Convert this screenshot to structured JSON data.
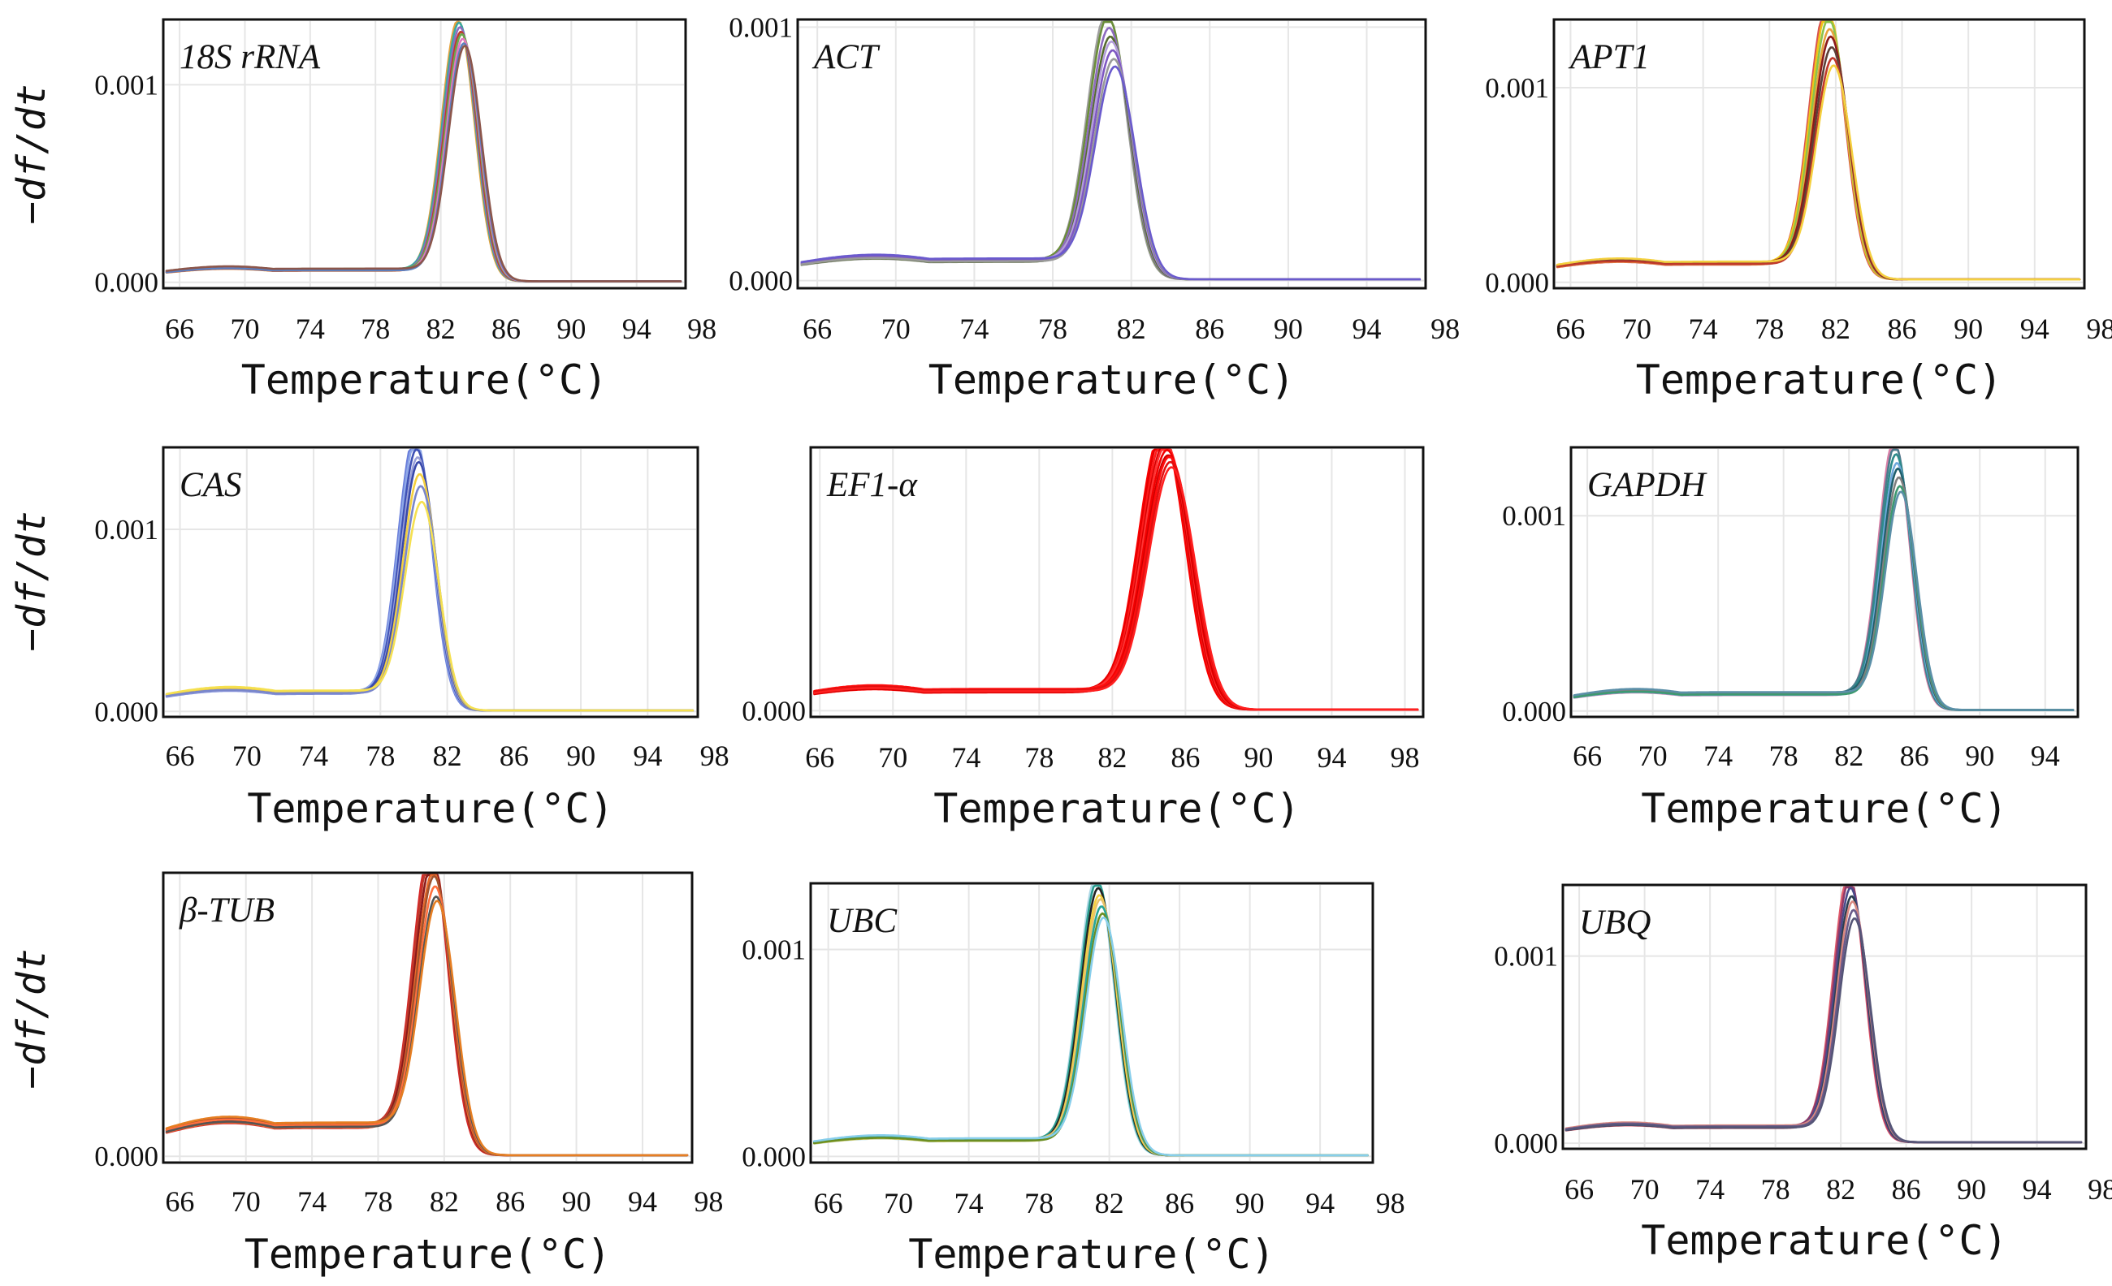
{
  "figure": {
    "ylabel": "−df/dt",
    "xlabel": "Temperature(°C)"
  },
  "chart_data": [
    {
      "type": "line",
      "gene": "18S rRNA",
      "xlabel": "Temperature(°C)",
      "ylabel": "−df/dt",
      "xlim": [
        65,
        97
      ],
      "ylim": [
        -3e-05,
        0.00133
      ],
      "xticks": [
        66,
        70,
        74,
        78,
        82,
        86,
        90,
        94,
        98
      ],
      "yticks": [
        {
          "value": 0,
          "label": "0.000"
        },
        {
          "value": 0.001,
          "label": "0.001"
        }
      ],
      "peak_temperature": 83.3,
      "peak_width": 1.0,
      "shoulder": 7e-05,
      "tail": 5e-06,
      "series_peaks": [
        0.00127,
        0.00125,
        0.00123,
        0.00121,
        0.00119,
        0.00117,
        0.00115,
        0.00113
      ],
      "colors": [
        "#e8a33d",
        "#3aa8a0",
        "#8e6bbf",
        "#c0392b",
        "#6aa84f",
        "#e377c2",
        "#5b7fbf",
        "#8c564b"
      ]
    },
    {
      "type": "line",
      "gene": "ACT",
      "xlabel": "Temperature(°C)",
      "ylabel": "−df/dt",
      "xlim": [
        65,
        97
      ],
      "ylim": [
        -3e-05,
        0.00103
      ],
      "xticks": [
        66,
        70,
        74,
        78,
        82,
        86,
        90,
        94,
        98
      ],
      "yticks": [
        {
          "value": 0,
          "label": "0.000"
        },
        {
          "value": 0.001,
          "label": "0.001"
        }
      ],
      "peak_temperature": 81.0,
      "peak_width": 1.0,
      "shoulder": 9e-05,
      "tail": 5e-06,
      "series_peaks": [
        0.00099,
        0.00096,
        0.00092,
        0.00089,
        0.00086,
        0.00083,
        0.0008,
        0.00076
      ],
      "colors": [
        "#9e9e9e",
        "#6b8e3a",
        "#8e6bbf",
        "#556b2f",
        "#b39ddb",
        "#7e57c2",
        "#999999",
        "#6a5acd"
      ]
    },
    {
      "type": "line",
      "gene": "APT1",
      "xlabel": "Temperature(°C)",
      "ylabel": "−df/dt",
      "xlim": [
        65,
        97
      ],
      "ylim": [
        -3e-05,
        0.00135
      ],
      "xticks": [
        66,
        70,
        74,
        78,
        82,
        86,
        90,
        94,
        98
      ],
      "yticks": [
        {
          "value": 0,
          "label": "0.000"
        },
        {
          "value": 0.001,
          "label": "0.001"
        }
      ],
      "peak_temperature": 81.7,
      "peak_width": 1.05,
      "shoulder": 0.0001,
      "tail": 1.5e-05,
      "series_peaks": [
        0.00134,
        0.0013,
        0.00126,
        0.00121,
        0.00116,
        0.00111,
        0.00106,
        0.00101
      ],
      "colors": [
        "#d9534f",
        "#f0c419",
        "#8bc34a",
        "#e8a33d",
        "#8b1a1a",
        "#5d4037",
        "#c0392b",
        "#f4d03f"
      ]
    },
    {
      "type": "line",
      "gene": "CAS",
      "xlabel": "Temperature(°C)",
      "ylabel": "−df/dt",
      "xlim": [
        65,
        97
      ],
      "ylim": [
        -3e-05,
        0.00145
      ],
      "xticks": [
        66,
        70,
        74,
        78,
        82,
        86,
        90,
        94,
        98
      ],
      "yticks": [
        {
          "value": 0,
          "label": "0.000"
        },
        {
          "value": 0.001,
          "label": "0.001"
        }
      ],
      "peak_temperature": 80.3,
      "peak_width": 1.0,
      "shoulder": 0.00012,
      "tail": 5e-06,
      "series_peaks": [
        0.00142,
        0.00138,
        0.00134,
        0.0013,
        0.00126,
        0.0012,
        0.00114,
        0.00104
      ],
      "colors": [
        "#6a7fdb",
        "#8fa8e8",
        "#3f51b5",
        "#9aa0d8",
        "#3949ab",
        "#f4d03f",
        "#7986cb",
        "#f5e050"
      ]
    },
    {
      "type": "line",
      "gene": "EF1-α",
      "xlabel": "Temperature(°C)",
      "ylabel": "−df/dt",
      "xlim": [
        65.5,
        99
      ],
      "ylim": [
        -3e-05,
        0.00128
      ],
      "xticks": [
        66,
        70,
        74,
        78,
        82,
        86,
        90,
        94,
        98
      ],
      "yticks": [
        {
          "value": 0,
          "label": "0.000"
        }
      ],
      "peak_temperature": 85.0,
      "peak_width": 1.25,
      "shoulder": 0.00011,
      "tail": 5e-06,
      "series_peaks": [
        0.00127,
        0.00125,
        0.00123,
        0.00121,
        0.00119,
        0.00117,
        0.00115,
        0.00113,
        0.00111,
        0.00109
      ],
      "colors": [
        "#ff0000",
        "#e60000",
        "#ff1a1a",
        "#d40000",
        "#ff3333",
        "#f20000",
        "#cc0000",
        "#ff0d0d",
        "#e01010",
        "#ff2020"
      ]
    },
    {
      "type": "line",
      "gene": "GAPDH",
      "xlabel": "Temperature(°C)",
      "ylabel": "−df/dt",
      "xlim": [
        65,
        96
      ],
      "ylim": [
        -3e-05,
        0.00135
      ],
      "xticks": [
        66,
        70,
        74,
        78,
        82,
        86,
        90,
        94
      ],
      "yticks": [
        {
          "value": 0,
          "label": "0.000"
        },
        {
          "value": 0.001,
          "label": "0.001"
        }
      ],
      "peak_temperature": 85.0,
      "peak_width": 0.95,
      "shoulder": 0.0001,
      "tail": 5e-06,
      "series_peaks": [
        0.00131,
        0.00127,
        0.00123,
        0.00119,
        0.00115,
        0.00111,
        0.00107,
        0.00103
      ],
      "colors": [
        "#d87fa6",
        "#4a7c8c",
        "#2e8b8b",
        "#6fa8dc",
        "#1f5f6b",
        "#7f7f7f",
        "#3d9970",
        "#5b8fa8"
      ]
    },
    {
      "type": "line",
      "gene": "β-TUB",
      "xlabel": "Temperature(°C)",
      "ylabel": "−df/dt",
      "xlim": [
        65,
        97
      ],
      "ylim": [
        -3e-05,
        0.00135
      ],
      "xticks": [
        66,
        70,
        74,
        78,
        82,
        86,
        90,
        94,
        98
      ],
      "yticks": [
        {
          "value": 0,
          "label": "0.000"
        }
      ],
      "peak_temperature": 81.4,
      "peak_width": 1.05,
      "shoulder": 0.00017,
      "tail": 5e-06,
      "series_peaks": [
        0.00134,
        0.0013,
        0.00126,
        0.00122,
        0.00118,
        0.00114,
        0.0011,
        0.00106
      ],
      "colors": [
        "#d62728",
        "#c0392b",
        "#8b1a1a",
        "#e8692a",
        "#a0522d",
        "#ff6f3c",
        "#555555",
        "#e67e22"
      ]
    },
    {
      "type": "line",
      "gene": "UBC",
      "xlabel": "Temperature(°C)",
      "ylabel": "−df/dt",
      "xlim": [
        65,
        97
      ],
      "ylim": [
        -3e-05,
        0.00132
      ],
      "xticks": [
        66,
        70,
        74,
        78,
        82,
        86,
        90,
        94,
        98
      ],
      "yticks": [
        {
          "value": 0,
          "label": "0.000"
        },
        {
          "value": 0.001,
          "label": "0.001"
        }
      ],
      "peak_temperature": 81.5,
      "peak_width": 1.0,
      "shoulder": 9e-05,
      "tail": 5e-06,
      "series_peaks": [
        0.00128,
        0.00125,
        0.00122,
        0.00119,
        0.00116,
        0.00113,
        0.0011,
        0.00107
      ],
      "colors": [
        "#add8e6",
        "#2a9d8f",
        "#222222",
        "#f4d03f",
        "#e9c46a",
        "#26a69a",
        "#6b8e23",
        "#87ceeb"
      ]
    },
    {
      "type": "line",
      "gene": "UBQ",
      "xlabel": "Temperature(°C)",
      "ylabel": "−df/dt",
      "xlim": [
        65,
        97
      ],
      "ylim": [
        -3e-05,
        0.00138
      ],
      "xticks": [
        66,
        70,
        74,
        78,
        82,
        86,
        90,
        94,
        98
      ],
      "yticks": [
        {
          "value": 0,
          "label": "0.000"
        },
        {
          "value": 0.001,
          "label": "0.001"
        }
      ],
      "peak_temperature": 82.7,
      "peak_width": 0.95,
      "shoulder": 0.0001,
      "tail": 5e-06,
      "series_peaks": [
        0.00136,
        0.00132,
        0.00128,
        0.00124,
        0.0012,
        0.00116,
        0.00112
      ],
      "colors": [
        "#e05a6b",
        "#8e3b6a",
        "#4a4a8a",
        "#2c3e50",
        "#d98880",
        "#6a5a8a",
        "#555577"
      ]
    }
  ]
}
